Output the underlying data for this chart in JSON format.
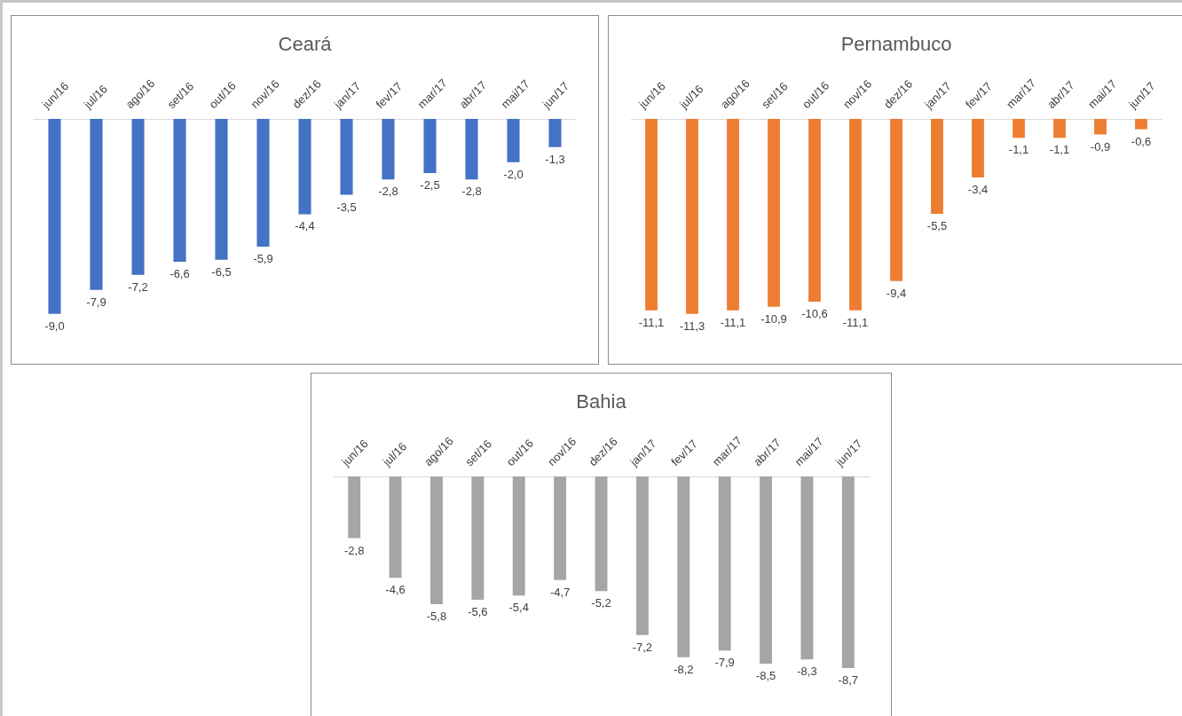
{
  "chart_data": [
    {
      "type": "bar",
      "title": "Ceará",
      "categories": [
        "jun/16",
        "jul/16",
        "ago/16",
        "set/16",
        "out/16",
        "nov/16",
        "dez/16",
        "jan/17",
        "fev/17",
        "mar/17",
        "abr/17",
        "mai/17",
        "jun/17"
      ],
      "series": [
        {
          "color": "#4472c4",
          "values": [
            -9.0,
            -7.9,
            -7.2,
            -6.6,
            -6.5,
            -5.9,
            -4.4,
            -3.5,
            -2.8,
            -2.5,
            -2.8,
            -2.0,
            -1.3
          ],
          "value_labels": [
            "-9,0",
            "-7,9",
            "-7,2",
            "-6,6",
            "-6,5",
            "-5,9",
            "-4,4",
            "-3,5",
            "-2,8",
            "-2,5",
            "-2,8",
            "-2,0",
            "-1,3"
          ]
        }
      ],
      "tick_labels": "x",
      "grid": false,
      "legend": false
    },
    {
      "type": "bar",
      "title": "Pernambuco",
      "categories": [
        "jun/16",
        "jul/16",
        "ago/16",
        "set/16",
        "out/16",
        "nov/16",
        "dez/16",
        "jan/17",
        "fev/17",
        "mar/17",
        "abr/17",
        "mai/17",
        "jun/17"
      ],
      "series": [
        {
          "color": "#ed7d31",
          "values": [
            -11.1,
            -11.3,
            -11.1,
            -10.9,
            -10.6,
            -11.1,
            -9.4,
            -5.5,
            -3.4,
            -1.1,
            -1.1,
            -0.9,
            -0.6
          ],
          "value_labels": [
            "-11,1",
            "-11,3",
            "-11,1",
            "-10,9",
            "-10,6",
            "-11,1",
            "-9,4",
            "-5,5",
            "-3,4",
            "-1,1",
            "-1,1",
            "-0,9",
            "-0,6"
          ]
        }
      ],
      "tick_labels": "x",
      "grid": false,
      "legend": false
    },
    {
      "type": "bar",
      "title": "Bahia",
      "categories": [
        "jun/16",
        "jul/16",
        "ago/16",
        "set/16",
        "out/16",
        "nov/16",
        "dez/16",
        "jan/17",
        "fev/17",
        "mar/17",
        "abr/17",
        "mai/17",
        "jun/17"
      ],
      "series": [
        {
          "color": "#a5a5a5",
          "values": [
            -2.8,
            -4.6,
            -5.8,
            -5.6,
            -5.4,
            -4.7,
            -5.2,
            -7.2,
            -8.2,
            -7.9,
            -8.5,
            -8.3,
            -8.7
          ],
          "value_labels": [
            "-2,8",
            "-4,6",
            "-5,8",
            "-5,6",
            "-5,4",
            "-4,7",
            "-5,2",
            "-7,2",
            "-8,2",
            "-7,9",
            "-8,5",
            "-8,3",
            "-8,7"
          ]
        }
      ],
      "tick_labels": "x",
      "grid": false,
      "legend": false
    }
  ]
}
